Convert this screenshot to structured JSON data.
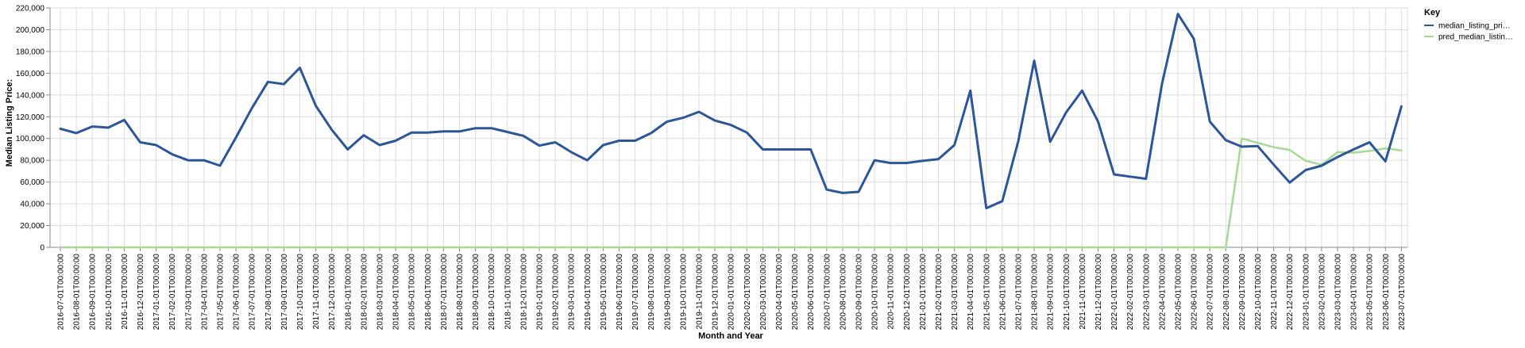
{
  "chart_data": {
    "type": "line",
    "xlabel": "Month and Year",
    "ylabel": "Median Listing Price:",
    "ylim": [
      0,
      220000
    ],
    "y_ticks": [
      "0",
      "20,000",
      "40,000",
      "60,000",
      "80,000",
      "100,000",
      "120,000",
      "140,000",
      "160,000",
      "180,000",
      "200,000",
      "220,000"
    ],
    "y_tick_values": [
      0,
      20000,
      40000,
      60000,
      80000,
      100000,
      120000,
      140000,
      160000,
      180000,
      200000,
      220000
    ],
    "grid": true,
    "legend": {
      "title": "Key",
      "position": "top-right",
      "entries": [
        "median_listing_pri…",
        "pred_median_listin…"
      ]
    },
    "categories": [
      "2016-07-01T00:00:00",
      "2016-08-01T00:00:00",
      "2016-09-01T00:00:00",
      "2016-10-01T00:00:00",
      "2016-11-01T00:00:00",
      "2016-12-01T00:00:00",
      "2017-01-01T00:00:00",
      "2017-02-01T00:00:00",
      "2017-03-01T00:00:00",
      "2017-04-01T00:00:00",
      "2017-05-01T00:00:00",
      "2017-06-01T00:00:00",
      "2017-07-01T00:00:00",
      "2017-08-01T00:00:00",
      "2017-09-01T00:00:00",
      "2017-10-01T00:00:00",
      "2017-11-01T00:00:00",
      "2017-12-01T00:00:00",
      "2018-01-01T00:00:00",
      "2018-02-01T00:00:00",
      "2018-03-01T00:00:00",
      "2018-04-01T00:00:00",
      "2018-05-01T00:00:00",
      "2018-06-01T00:00:00",
      "2018-07-01T00:00:00",
      "2018-08-01T00:00:00",
      "2018-09-01T00:00:00",
      "2018-10-01T00:00:00",
      "2018-11-01T00:00:00",
      "2018-12-01T00:00:00",
      "2019-01-01T00:00:00",
      "2019-02-01T00:00:00",
      "2019-03-01T00:00:00",
      "2019-04-01T00:00:00",
      "2019-05-01T00:00:00",
      "2019-06-01T00:00:00",
      "2019-07-01T00:00:00",
      "2019-08-01T00:00:00",
      "2019-09-01T00:00:00",
      "2019-10-01T00:00:00",
      "2019-11-01T00:00:00",
      "2019-12-01T00:00:00",
      "2020-01-01T00:00:00",
      "2020-02-01T00:00:00",
      "2020-03-01T00:00:00",
      "2020-04-01T00:00:00",
      "2020-05-01T00:00:00",
      "2020-06-01T00:00:00",
      "2020-07-01T00:00:00",
      "2020-08-01T00:00:00",
      "2020-09-01T00:00:00",
      "2020-10-01T00:00:00",
      "2020-11-01T00:00:00",
      "2020-12-01T00:00:00",
      "2021-01-01T00:00:00",
      "2021-02-01T00:00:00",
      "2021-03-01T00:00:00",
      "2021-04-01T00:00:00",
      "2021-05-01T00:00:00",
      "2021-06-01T00:00:00",
      "2021-07-01T00:00:00",
      "2021-08-01T00:00:00",
      "2021-09-01T00:00:00",
      "2021-10-01T00:00:00",
      "2021-11-01T00:00:00",
      "2021-12-01T00:00:00",
      "2022-01-01T00:00:00",
      "2022-02-01T00:00:00",
      "2022-03-01T00:00:00",
      "2022-04-01T00:00:00",
      "2022-05-01T00:00:00",
      "2022-06-01T00:00:00",
      "2022-07-01T00:00:00",
      "2022-08-01T00:00:00",
      "2022-09-01T00:00:00",
      "2022-10-01T00:00:00",
      "2022-11-01T00:00:00",
      "2022-12-01T00:00:00",
      "2023-01-01T00:00:00",
      "2023-02-01T00:00:00",
      "2023-03-01T00:00:00",
      "2023-04-01T00:00:00",
      "2023-05-01T00:00:00",
      "2023-06-01T00:00:00",
      "2023-07-01T00:00:00"
    ],
    "series": [
      {
        "name": "median_listing_pri…",
        "color": "#2c5697",
        "values": [
          109000,
          105000,
          111000,
          110000,
          117000,
          96500,
          94000,
          85500,
          80000,
          80000,
          75000,
          101000,
          128000,
          152000,
          150000,
          165000,
          130000,
          108000,
          90000,
          103000,
          94000,
          98000,
          105500,
          105500,
          106500,
          106500,
          109500,
          109500,
          106000,
          102500,
          93500,
          96500,
          87500,
          80000,
          94000,
          98000,
          98000,
          105000,
          115500,
          119000,
          124500,
          116500,
          112500,
          105500,
          90000,
          90000,
          90000,
          90000,
          53000,
          50000,
          51000,
          80000,
          77500,
          77500,
          79500,
          81000,
          94000,
          144000,
          36000,
          42500,
          97500,
          171500,
          97000,
          124000,
          144000,
          115500,
          67000,
          65000,
          63000,
          150000,
          214500,
          191500,
          115500,
          98500,
          92500,
          93000,
          76000,
          59500,
          71000,
          75000,
          83000,
          90000,
          96500,
          79000,
          129500
        ]
      },
      {
        "name": "pred_median_listin…",
        "color": "#a6d996",
        "values": [
          0,
          0,
          0,
          0,
          0,
          0,
          0,
          0,
          0,
          0,
          0,
          0,
          0,
          0,
          0,
          0,
          0,
          0,
          0,
          0,
          0,
          0,
          0,
          0,
          0,
          0,
          0,
          0,
          0,
          0,
          0,
          0,
          0,
          0,
          0,
          0,
          0,
          0,
          0,
          0,
          0,
          0,
          0,
          0,
          0,
          0,
          0,
          0,
          0,
          0,
          0,
          0,
          0,
          0,
          0,
          0,
          0,
          0,
          0,
          0,
          0,
          0,
          0,
          0,
          0,
          0,
          0,
          0,
          0,
          0,
          0,
          0,
          0,
          0,
          100000,
          96000,
          92000,
          89500,
          79500,
          76000,
          87500,
          87000,
          88500,
          91000,
          89000
        ]
      }
    ]
  }
}
